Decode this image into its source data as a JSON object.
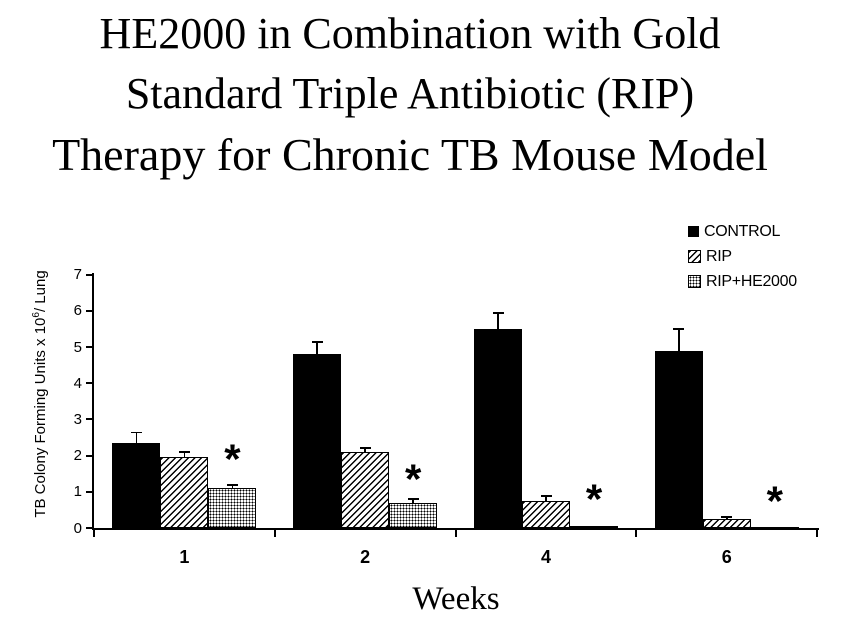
{
  "title": {
    "line1": "HE2000 in Combination with Gold",
    "line2": "Standard Triple Antibiotic (RIP)",
    "line3": "Therapy for Chronic TB Mouse Model"
  },
  "colors": {
    "foreground": "#000000",
    "background": "#ffffff"
  },
  "chart_data": {
    "type": "bar",
    "title": "HE2000 in Combination with Gold Standard Triple Antibiotic (RIP) Therapy for Chronic TB Mouse Model",
    "xlabel": "Weeks",
    "ylabel": "TB Colony Forming Units x 10^6/ Lung",
    "ylabel_parts": {
      "prefix": "TB Colony Forming Units x 10",
      "superscript": "6",
      "suffix": "/ Lung"
    },
    "categories": [
      "1",
      "2",
      "4",
      "6"
    ],
    "ylim": [
      0,
      7
    ],
    "yticks": [
      0,
      1,
      2,
      3,
      4,
      5,
      6,
      7
    ],
    "grid": false,
    "legend_position": "top-right",
    "series": [
      {
        "name": "CONTROL",
        "pattern": "solid",
        "values": [
          2.35,
          4.8,
          5.5,
          4.9
        ],
        "errors": [
          0.3,
          0.35,
          0.45,
          0.6
        ]
      },
      {
        "name": "RIP",
        "pattern": "diagonal-hatch",
        "values": [
          1.95,
          2.1,
          0.75,
          0.25
        ],
        "errors": [
          0.15,
          0.12,
          0.15,
          0.07
        ]
      },
      {
        "name": "RIP+HE2000",
        "pattern": "dotted",
        "values": [
          1.1,
          0.7,
          0.05,
          0.02
        ],
        "errors": [
          0.1,
          0.12,
          0,
          0
        ]
      }
    ],
    "annotations": [
      {
        "group_index": 0,
        "label": "*",
        "y": 2.1
      },
      {
        "group_index": 1,
        "label": "*",
        "y": 1.55
      },
      {
        "group_index": 2,
        "label": "*",
        "y": 1.0
      },
      {
        "group_index": 3,
        "label": "*",
        "y": 0.95
      }
    ]
  }
}
